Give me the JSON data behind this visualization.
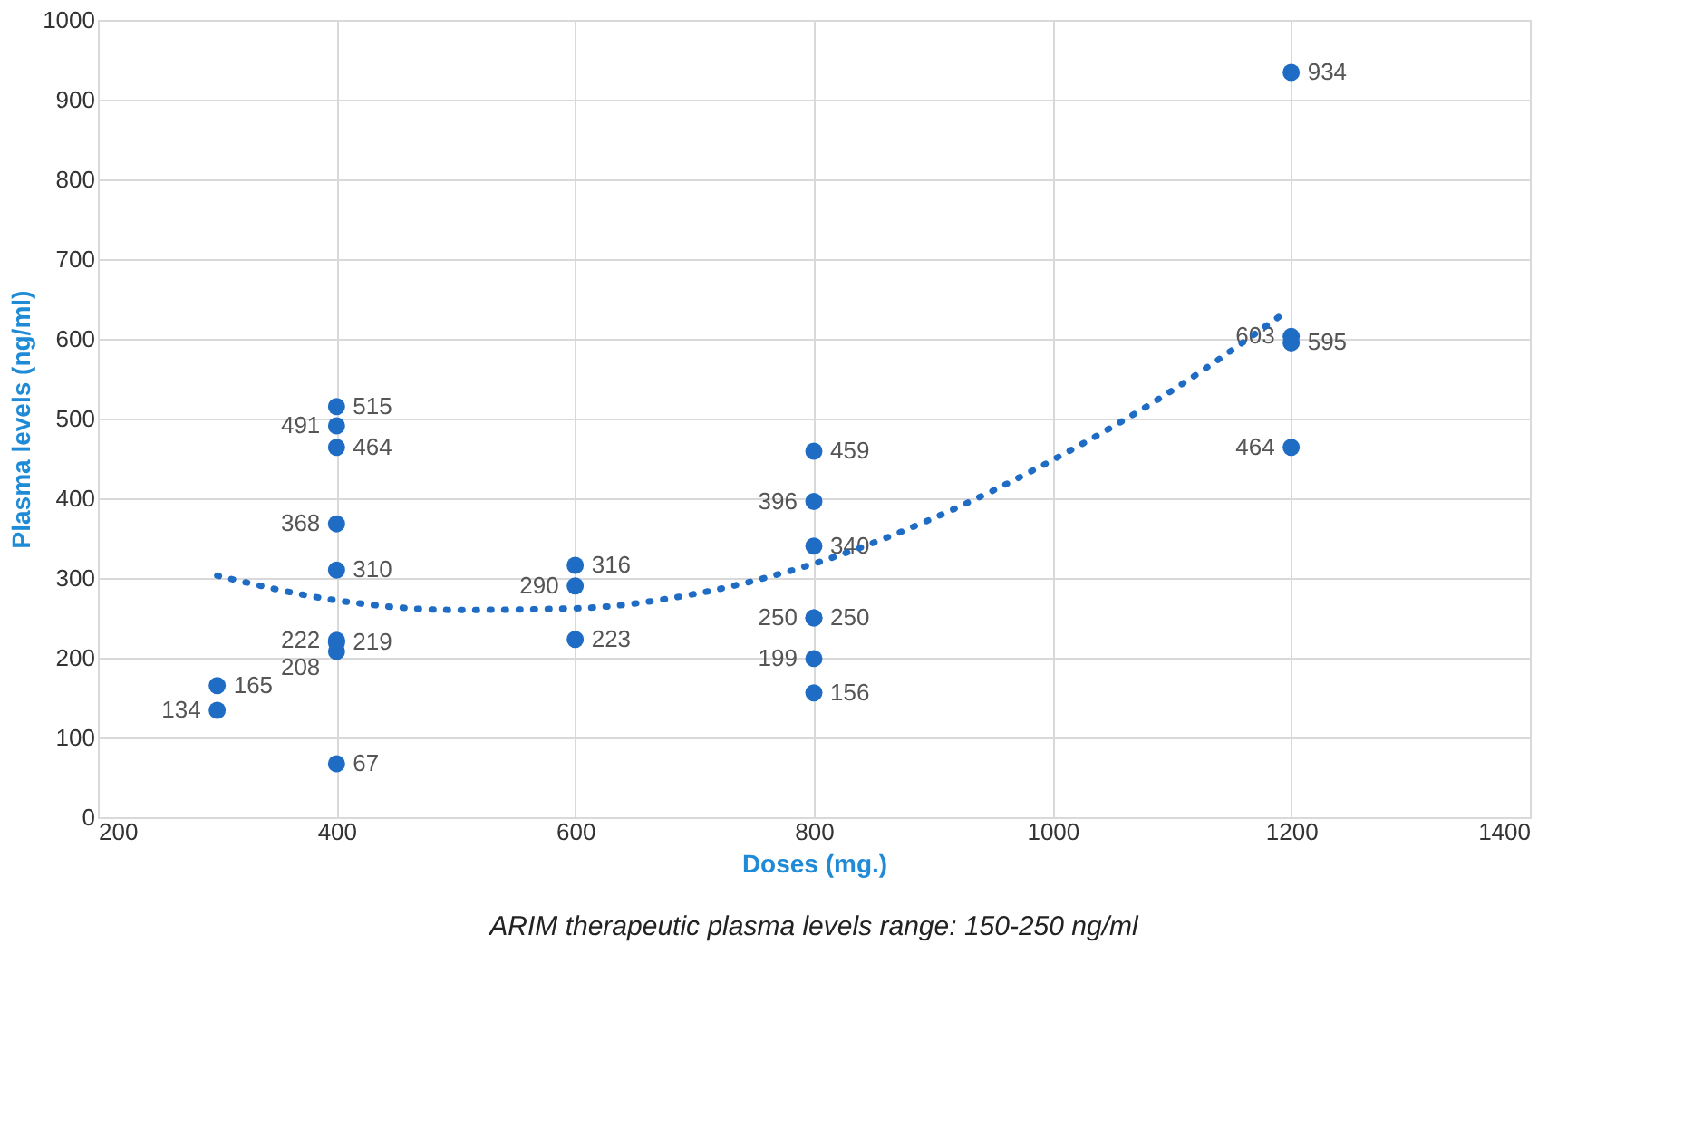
{
  "chart_data": {
    "type": "scatter",
    "xlabel": "Doses (mg.)",
    "ylabel": "Plasma levels  (ng/ml)",
    "annotations": [
      "ARIM therapeutic plasma levels range: 150-250 ng/ml"
    ],
    "series": [
      {
        "color": "#1f6cc4",
        "x": [
          300,
          300,
          400,
          400,
          400,
          400,
          400,
          400,
          400,
          400,
          400,
          600,
          600,
          600,
          800,
          800,
          800,
          800,
          800,
          800,
          800,
          1200,
          1200,
          1200,
          1200
        ],
        "values": [
          165,
          134,
          515,
          491,
          464,
          368,
          310,
          222,
          219,
          208,
          67,
          316,
          290,
          223,
          459,
          396,
          340,
          250,
          250,
          199,
          156,
          934,
          603,
          595,
          464
        ],
        "data_labels": true
      },
      {
        "type": "line",
        "color": "#1f6cc4",
        "line_style": "dotted",
        "marker": "none",
        "x": [
          300,
          400,
          500,
          600,
          700,
          800,
          900,
          1000,
          1100,
          1190
        ],
        "values": [
          303,
          272,
          260,
          262,
          280,
          318,
          375,
          448,
          535,
          628
        ]
      }
    ],
    "marker": "circle",
    "xlim": [
      200,
      1400
    ],
    "xticks": [
      200,
      400,
      600,
      800,
      1000,
      1200,
      1400
    ],
    "ylim": [
      0,
      1000
    ],
    "yticks": [
      0,
      100,
      200,
      300,
      400,
      500,
      600,
      700,
      800,
      900,
      1000
    ],
    "grid": true
  }
}
